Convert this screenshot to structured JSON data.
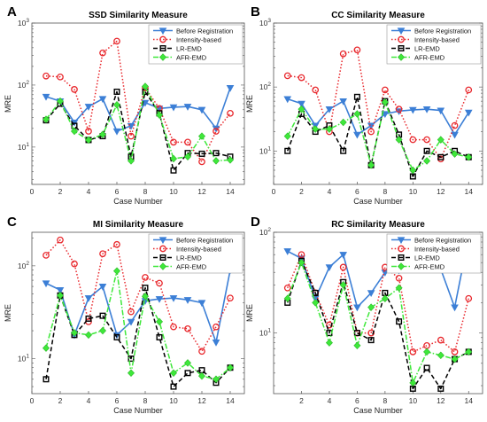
{
  "chart_data": [
    {
      "panel": "A",
      "type": "line",
      "title": "SSD Similarity Measure",
      "xlabel": "Case Number",
      "ylabel": "MRE",
      "yscale": "log",
      "ylim": [
        2.5,
        1000
      ],
      "xlim": [
        0,
        15
      ],
      "xticks": [
        "0",
        "2",
        "4",
        "6",
        "8",
        "10",
        "12",
        "14"
      ],
      "yticks": [
        {
          "value": 10,
          "base": "10",
          "exp": "1"
        },
        {
          "value": 100,
          "base": "10",
          "exp": "2"
        },
        {
          "value": 1000,
          "base": "10",
          "exp": "3"
        }
      ],
      "legend_position": "top-right",
      "x": [
        1,
        2,
        3,
        4,
        5,
        6,
        7,
        8,
        9,
        10,
        11,
        12,
        13,
        14
      ],
      "series": [
        {
          "name": "Before Registration",
          "color": "#3c7fd6",
          "dash": "solid",
          "marker": "triangle-down",
          "values": [
            65,
            55,
            25,
            45,
            60,
            18,
            22,
            52,
            42,
            44,
            45,
            40,
            20,
            90
          ]
        },
        {
          "name": "Intensity-based",
          "color": "#e8262b",
          "dash": "dotted",
          "marker": "circle",
          "values": [
            140,
            135,
            85,
            18,
            330,
            510,
            15,
            90,
            42,
            12,
            12,
            5.8,
            18,
            35
          ]
        },
        {
          "name": "LR-EMD",
          "color": "#000000",
          "dash": "dashed",
          "marker": "square",
          "values": [
            27,
            50,
            22,
            13,
            15,
            78,
            7,
            78,
            35,
            4.2,
            8,
            7.8,
            8,
            7
          ]
        },
        {
          "name": "AFR-EMD",
          "color": "#3ee83a",
          "dash": "dashdot",
          "marker": "diamond",
          "values": [
            28,
            55,
            18,
            13,
            16,
            48,
            6,
            95,
            33,
            6.5,
            7,
            15,
            6,
            6.2
          ]
        }
      ]
    },
    {
      "panel": "B",
      "type": "line",
      "title": "CC Similarity Measure",
      "xlabel": "Case Number",
      "ylabel": "MRE",
      "yscale": "log",
      "ylim": [
        3,
        1000
      ],
      "xlim": [
        0,
        15
      ],
      "xticks": [
        "0",
        "2",
        "4",
        "6",
        "8",
        "10",
        "12",
        "14"
      ],
      "yticks": [
        {
          "value": 10,
          "base": "10",
          "exp": "1"
        },
        {
          "value": 100,
          "base": "10",
          "exp": "2"
        },
        {
          "value": 1000,
          "base": "10",
          "exp": "3"
        }
      ],
      "legend_position": "top-right",
      "x": [
        1,
        2,
        3,
        4,
        5,
        6,
        7,
        8,
        9,
        10,
        11,
        12,
        13,
        14
      ],
      "series": [
        {
          "name": "Before Registration",
          "color": "#3c7fd6",
          "dash": "solid",
          "marker": "triangle-down",
          "values": [
            65,
            55,
            25,
            45,
            60,
            18,
            25,
            38,
            42,
            44,
            45,
            43,
            18,
            40
          ]
        },
        {
          "name": "Intensity-based",
          "color": "#e8262b",
          "dash": "dotted",
          "marker": "circle",
          "values": [
            150,
            140,
            90,
            20,
            330,
            380,
            20,
            90,
            45,
            15,
            15,
            7.5,
            25,
            90
          ]
        },
        {
          "name": "LR-EMD",
          "color": "#000000",
          "dash": "dashed",
          "marker": "square",
          "values": [
            10,
            38,
            20,
            25,
            10,
            70,
            6,
            60,
            18,
            4,
            10,
            8,
            10,
            8
          ]
        },
        {
          "name": "AFR-EMD",
          "color": "#3ee83a",
          "dash": "dashdot",
          "marker": "diamond",
          "values": [
            17,
            45,
            22,
            22,
            28,
            38,
            6,
            58,
            15,
            5,
            7,
            15,
            9,
            8
          ]
        }
      ]
    },
    {
      "panel": "C",
      "type": "line",
      "title": "MI Similarity Measure",
      "xlabel": "Case Number",
      "ylabel": "MRE",
      "yscale": "log",
      "ylim": [
        4.2,
        230
      ],
      "xlim": [
        0,
        15
      ],
      "xticks": [
        "0",
        "2",
        "4",
        "6",
        "8",
        "10",
        "12",
        "14"
      ],
      "yticks": [
        {
          "value": 10,
          "base": "10",
          "exp": "1"
        },
        {
          "value": 100,
          "base": "10",
          "exp": "2"
        }
      ],
      "legend_position": "top-right",
      "x": [
        1,
        2,
        3,
        4,
        5,
        6,
        7,
        8,
        9,
        10,
        11,
        12,
        13,
        14
      ],
      "series": [
        {
          "name": "Before Registration",
          "color": "#3c7fd6",
          "dash": "solid",
          "marker": "triangle-down",
          "values": [
            65,
            55,
            18,
            45,
            60,
            18,
            25,
            42,
            44,
            45,
            43,
            40,
            15,
            90
          ]
        },
        {
          "name": "Intensity-based",
          "color": "#e8262b",
          "dash": "dotted",
          "marker": "circle",
          "values": [
            130,
            190,
            105,
            25,
            135,
            170,
            32,
            75,
            65,
            22,
            21,
            12,
            22,
            45
          ]
        },
        {
          "name": "LR-EMD",
          "color": "#000000",
          "dash": "dashed",
          "marker": "square",
          "values": [
            6,
            48,
            18,
            27,
            29,
            17,
            10,
            58,
            17,
            5,
            7,
            7.5,
            5.5,
            8
          ]
        },
        {
          "name": "AFR-EMD",
          "color": "#3ee83a",
          "dash": "dashdot",
          "marker": "diamond",
          "values": [
            13,
            48,
            19,
            18,
            20,
            88,
            7,
            47,
            25,
            7,
            9,
            6.5,
            6,
            8
          ]
        }
      ]
    },
    {
      "panel": "D",
      "type": "line",
      "title": "RC Similarity Measure",
      "xlabel": "Case Number",
      "ylabel": "MRE",
      "yscale": "log",
      "ylim": [
        2.5,
        100
      ],
      "xlim": [
        0,
        15
      ],
      "xticks": [
        "2",
        "4",
        "6",
        "8",
        "10",
        "12",
        "14"
      ],
      "yticks": [
        {
          "value": 10,
          "base": "10",
          "exp": "1"
        },
        {
          "value": 100,
          "base": "10",
          "exp": "2"
        }
      ],
      "legend_position": "top-right",
      "x": [
        1,
        2,
        3,
        4,
        5,
        6,
        7,
        8,
        9,
        10,
        11,
        12,
        13,
        14
      ],
      "series": [
        {
          "name": "Before Registration",
          "color": "#3c7fd6",
          "dash": "solid",
          "marker": "triangle-down",
          "values": [
            65,
            55,
            22,
            45,
            60,
            18,
            25,
            40,
            42,
            44,
            45,
            43,
            18,
            90
          ]
        },
        {
          "name": "Intensity-based",
          "color": "#e8262b",
          "dash": "dotted",
          "marker": "circle",
          "values": [
            28,
            60,
            25,
            12,
            45,
            10,
            10,
            45,
            35,
            6.5,
            7.5,
            8.5,
            6.5,
            22
          ]
        },
        {
          "name": "LR-EMD",
          "color": "#000000",
          "dash": "dashed",
          "marker": "square",
          "values": [
            20,
            52,
            25,
            10,
            32,
            10,
            8.5,
            25,
            13,
            2.8,
            4.5,
            2.8,
            5.5,
            6.5
          ]
        },
        {
          "name": "AFR-EMD",
          "color": "#3ee83a",
          "dash": "dashdot",
          "marker": "diamond",
          "values": [
            22,
            50,
            20,
            8,
            30,
            7.5,
            18,
            22,
            28,
            3.2,
            6.5,
            6,
            5.5,
            6.5
          ]
        }
      ]
    }
  ]
}
